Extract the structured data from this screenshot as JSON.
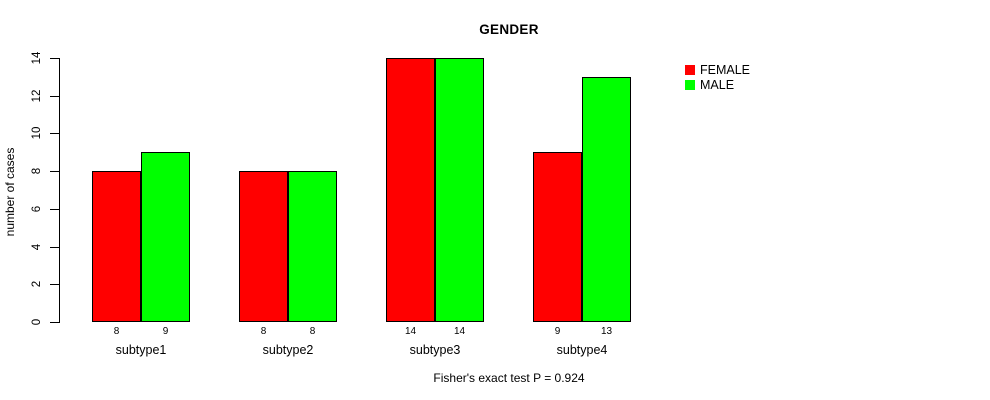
{
  "figure": {
    "background": "#ffffff",
    "text_color": "#000000",
    "axis_color": "#000000"
  },
  "chart_data": {
    "type": "bar",
    "title": "GENDER",
    "xlabel": "",
    "ylabel": "number of cases",
    "categories": [
      "subtype1",
      "subtype2",
      "subtype3",
      "subtype4"
    ],
    "series": [
      {
        "name": "FEMALE",
        "color": "#ff0000",
        "values": [
          8,
          8,
          14,
          9
        ]
      },
      {
        "name": "MALE",
        "color": "#00ff00",
        "values": [
          9,
          8,
          14,
          13
        ]
      }
    ],
    "bar_value_labels": [
      [
        "8",
        "9"
      ],
      [
        "8",
        "8"
      ],
      [
        "14",
        "14"
      ],
      [
        "9",
        "13"
      ]
    ],
    "yticks": [
      0,
      2,
      4,
      6,
      8,
      10,
      12,
      14
    ],
    "ylim": [
      0,
      14
    ],
    "grid": false,
    "bar_border_color": "#000000",
    "legend_position": "right",
    "legend_entries": [
      "FEMALE",
      "MALE"
    ],
    "annotation": "Fisher's exact test P = 0.924"
  }
}
